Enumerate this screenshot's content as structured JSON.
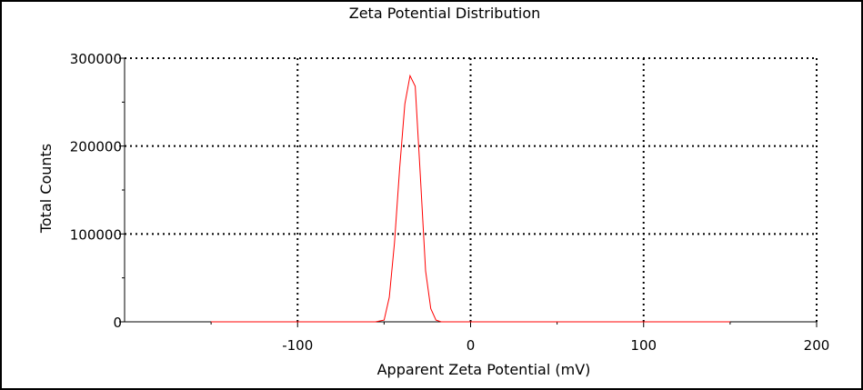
{
  "chart_data": {
    "type": "line",
    "title": "Zeta Potential Distribution",
    "xlabel": "Apparent Zeta Potential (mV)",
    "ylabel": "Total Counts",
    "xlim": [
      -200,
      200
    ],
    "ylim": [
      0,
      300000
    ],
    "x_ticks": [
      -100,
      0,
      100,
      200
    ],
    "x_tick_labels": [
      "-100",
      "0",
      "100",
      "200"
    ],
    "y_ticks": [
      0,
      100000,
      200000,
      300000
    ],
    "y_tick_labels": [
      "0",
      "100000",
      "200000",
      "300000"
    ],
    "grid": true,
    "series_color": "#ff0000",
    "series": [
      {
        "x": [
          -150,
          -55,
          -50,
          -47,
          -44,
          -41,
          -38,
          -35,
          -32,
          -29,
          -26,
          -23,
          -20,
          -17,
          -14,
          150
        ],
        "y": [
          0,
          0,
          2000,
          28000,
          90000,
          175000,
          248000,
          280000,
          268000,
          165000,
          58000,
          15000,
          2000,
          0,
          0,
          0
        ]
      }
    ]
  }
}
